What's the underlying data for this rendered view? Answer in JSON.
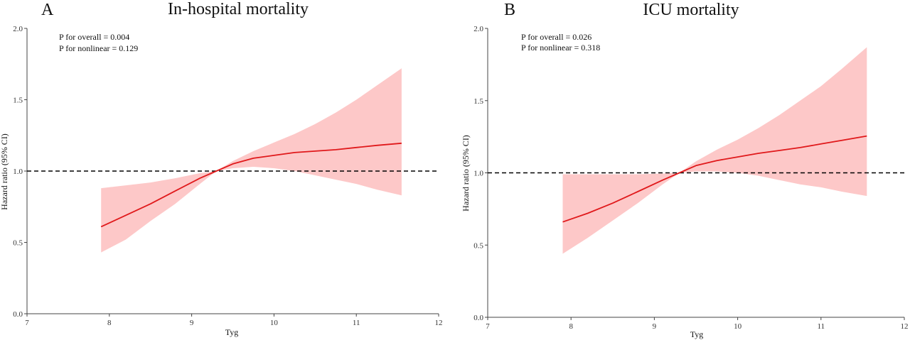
{
  "chart_data": [
    {
      "type": "line",
      "panel_label": "A",
      "title": "In-hospital mortality",
      "xlabel": "Tyg",
      "ylabel": "Hazard ratio (95% CI)",
      "xlim": [
        7,
        12
      ],
      "ylim": [
        0,
        2.0
      ],
      "xticks": [
        7,
        8,
        9,
        10,
        11,
        12
      ],
      "yticks": [
        "0.0",
        "0.5",
        "1.0",
        "1.5",
        "2.0"
      ],
      "reference_line": 1.0,
      "annotations": [
        "P for overall = 0.004",
        "P for nonlinear = 0.129"
      ],
      "colors": {
        "line": "#e0191b",
        "band": "#fdc8c8",
        "reference": "#000000"
      },
      "series": [
        {
          "x": [
            7.9,
            8.2,
            8.5,
            8.8,
            9.1,
            9.3,
            9.5,
            9.75,
            10.0,
            10.25,
            10.5,
            10.75,
            11.0,
            11.25,
            11.55
          ],
          "y": [
            0.61,
            0.69,
            0.77,
            0.86,
            0.95,
            1.0,
            1.05,
            1.09,
            1.11,
            1.13,
            1.14,
            1.15,
            1.165,
            1.18,
            1.195
          ],
          "lower": [
            0.43,
            0.52,
            0.65,
            0.77,
            0.91,
            1.0,
            1.02,
            1.03,
            1.02,
            1.0,
            0.97,
            0.94,
            0.91,
            0.87,
            0.83
          ],
          "upper": [
            0.88,
            0.9,
            0.92,
            0.95,
            0.985,
            1.0,
            1.07,
            1.14,
            1.2,
            1.26,
            1.33,
            1.41,
            1.5,
            1.6,
            1.72
          ]
        }
      ]
    },
    {
      "type": "line",
      "panel_label": "B",
      "title": "ICU mortality",
      "xlabel": "Tyg",
      "ylabel": "Hazard ratio (95% CI)",
      "xlim": [
        7,
        12
      ],
      "ylim": [
        0,
        2.0
      ],
      "xticks": [
        7,
        8,
        9,
        10,
        11,
        12
      ],
      "yticks": [
        "0.0",
        "0.5",
        "1.0",
        "1.5",
        "2.0"
      ],
      "reference_line": 1.0,
      "annotations": [
        "P for overall = 0.026",
        "P for nonlinear = 0.318"
      ],
      "colors": {
        "line": "#e0191b",
        "band": "#fdc8c8",
        "reference": "#000000"
      },
      "series": [
        {
          "x": [
            7.9,
            8.2,
            8.5,
            8.8,
            9.1,
            9.3,
            9.5,
            9.75,
            10.0,
            10.25,
            10.5,
            10.75,
            11.0,
            11.25,
            11.55
          ],
          "y": [
            0.66,
            0.72,
            0.79,
            0.87,
            0.95,
            1.0,
            1.05,
            1.085,
            1.11,
            1.135,
            1.155,
            1.175,
            1.2,
            1.225,
            1.255
          ],
          "lower": [
            0.44,
            0.55,
            0.67,
            0.79,
            0.92,
            1.0,
            1.01,
            1.01,
            1.0,
            0.98,
            0.95,
            0.92,
            0.9,
            0.87,
            0.84
          ],
          "upper": [
            0.99,
            0.99,
            0.99,
            0.99,
            0.995,
            1.0,
            1.08,
            1.16,
            1.23,
            1.31,
            1.4,
            1.5,
            1.6,
            1.72,
            1.87
          ]
        }
      ]
    }
  ]
}
